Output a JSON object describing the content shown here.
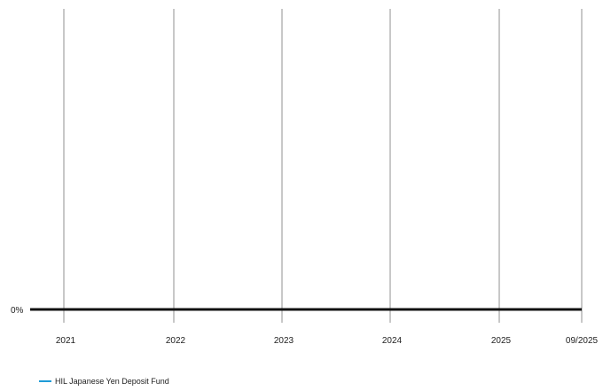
{
  "chart_data": {
    "type": "line",
    "title": "",
    "xlabel": "",
    "ylabel": "",
    "x_ticks": [
      "2021",
      "2022",
      "2023",
      "2024",
      "2025",
      "09/2025"
    ],
    "y_ticks": [
      "0%"
    ],
    "ylim_label": "0%",
    "grid": "vertical",
    "legend_position": "bottom-left",
    "series": [
      {
        "name": "HIL Japanese Yen Deposit Fund",
        "color": "#1f9bd7",
        "x": [
          "2021",
          "2022",
          "2023",
          "2024",
          "2025",
          "09/2025"
        ],
        "y": [
          0,
          0,
          0,
          0,
          0,
          0
        ]
      }
    ],
    "colors": {
      "grid": "#c8c8c8",
      "baseline": "#111111",
      "series": "#1f9bd7"
    }
  }
}
